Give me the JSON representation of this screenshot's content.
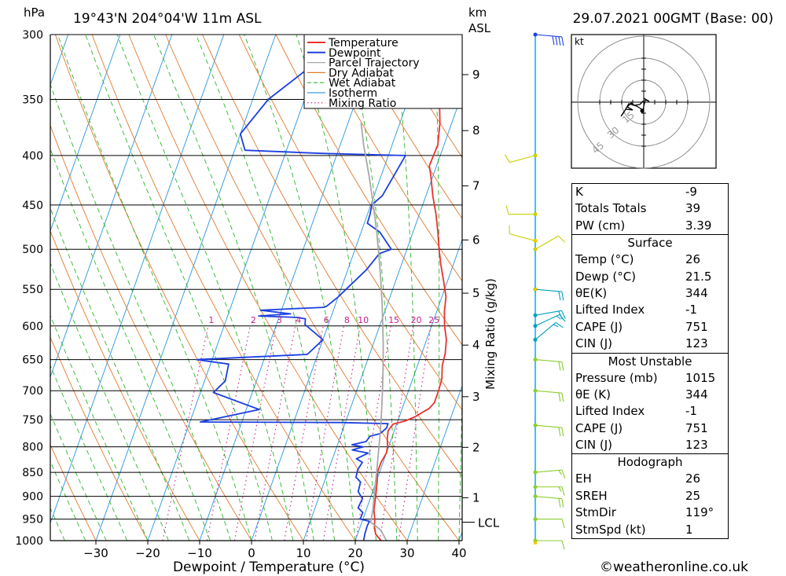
{
  "header": {
    "pressure_unit": "hPa",
    "location": "19°43'N  204°04'W  11m  ASL",
    "km_unit": "km",
    "asl_unit": "ASL",
    "datetime": "29.07.2021  00GMT  (Base: 00)"
  },
  "credit": "©weatheronline.co.uk",
  "hodograph": {
    "unit": "kt",
    "ring_labels": [
      "15",
      "30",
      "45"
    ]
  },
  "stats": {
    "indices": [
      {
        "label": "K",
        "value": "-9"
      },
      {
        "label": "Totals Totals",
        "value": "39"
      },
      {
        "label": "PW (cm)",
        "value": "3.39"
      }
    ],
    "surface": {
      "title": "Surface",
      "rows": [
        {
          "label": "Temp (°C)",
          "value": "26"
        },
        {
          "label": "Dewp (°C)",
          "value": "21.5"
        },
        {
          "label": "θE(K)",
          "value": "344"
        },
        {
          "label": "Lifted Index",
          "value": "-1"
        },
        {
          "label": "CAPE (J)",
          "value": "751"
        },
        {
          "label": "CIN (J)",
          "value": "123"
        }
      ]
    },
    "most_unstable": {
      "title": "Most Unstable",
      "rows": [
        {
          "label": "Pressure (mb)",
          "value": "1015"
        },
        {
          "label": "θE (K)",
          "value": "344"
        },
        {
          "label": "Lifted Index",
          "value": "-1"
        },
        {
          "label": "CAPE (J)",
          "value": "751"
        },
        {
          "label": "CIN (J)",
          "value": "123"
        }
      ]
    },
    "hodograph": {
      "title": "Hodograph",
      "rows": [
        {
          "label": "EH",
          "value": "26"
        },
        {
          "label": "SREH",
          "value": "25"
        },
        {
          "label": "StmDir",
          "value": "119°"
        },
        {
          "label": "StmSpd (kt)",
          "value": "1"
        }
      ]
    }
  },
  "chart_data": {
    "type": "line",
    "title": "",
    "xlabel": "Dewpoint / Temperature (°C)",
    "ylabel": "hPa",
    "right_label": "Mixing Ratio (g/kg)",
    "xlim": [
      -40,
      40
    ],
    "ylim": [
      1000,
      300
    ],
    "x_ticks": [
      -30,
      -20,
      -10,
      0,
      10,
      20,
      30,
      40
    ],
    "pressure_levels": [
      300,
      350,
      400,
      450,
      500,
      550,
      600,
      650,
      700,
      750,
      800,
      850,
      900,
      950,
      1000
    ],
    "km_ticks": [
      {
        "km": 1,
        "p": 903
      },
      {
        "km": 2,
        "p": 801
      },
      {
        "km": 3,
        "p": 710
      },
      {
        "km": 4,
        "p": 628
      },
      {
        "km": 5,
        "p": 555
      },
      {
        "km": 6,
        "p": 489
      },
      {
        "km": 7,
        "p": 430
      },
      {
        "km": 8,
        "p": 377
      },
      {
        "km": 9,
        "p": 330
      }
    ],
    "lcl": {
      "label": "LCL",
      "p": 957
    },
    "mixing_ratio_labels": [
      "1",
      "2",
      "3",
      "4",
      "6",
      "8",
      "10",
      "15",
      "20",
      "25"
    ],
    "legend": {
      "position": "top",
      "entries": [
        {
          "name": "Temperature",
          "color": "#e8322f",
          "style": "solid"
        },
        {
          "name": "Dewpoint",
          "color": "#1c3fe0",
          "style": "solid"
        },
        {
          "name": "Parcel Trajectory",
          "color": "#a8a8a8",
          "style": "solid"
        },
        {
          "name": "Dry Adiabat",
          "color": "#e07a2c",
          "style": "solid"
        },
        {
          "name": "Wet Adiabat",
          "color": "#2db52d",
          "style": "dashed"
        },
        {
          "name": "Isotherm",
          "color": "#3aa0e0",
          "style": "solid"
        },
        {
          "name": "Mixing Ratio",
          "color": "#c8208a",
          "style": "dotted"
        }
      ]
    },
    "series": [
      {
        "name": "Temperature",
        "color": "#e8322f",
        "points": [
          [
            25,
            1000
          ],
          [
            23.5,
            985
          ],
          [
            22.8,
            970
          ],
          [
            22.3,
            950
          ],
          [
            21.5,
            930
          ],
          [
            20.9,
            900
          ],
          [
            20.2,
            870
          ],
          [
            19.6,
            850
          ],
          [
            19.6,
            830
          ],
          [
            20,
            812
          ],
          [
            19.8,
            800
          ],
          [
            19.2,
            785
          ],
          [
            18.8,
            770
          ],
          [
            19.3,
            758
          ],
          [
            21.5,
            752
          ],
          [
            23,
            745
          ],
          [
            25.2,
            730
          ],
          [
            25.8,
            720
          ],
          [
            25.8,
            700
          ],
          [
            25.6,
            680
          ],
          [
            24.8,
            660
          ],
          [
            24.5,
            640
          ],
          [
            23.8,
            620
          ],
          [
            22.5,
            600
          ],
          [
            21.5,
            580
          ],
          [
            20.8,
            560
          ],
          [
            19.3,
            540
          ],
          [
            17.7,
            520
          ],
          [
            16.2,
            500
          ],
          [
            14.8,
            480
          ],
          [
            13.2,
            460
          ],
          [
            11.3,
            440
          ],
          [
            9.6,
            420
          ],
          [
            8.6,
            410
          ],
          [
            8.8,
            390
          ],
          [
            7.7,
            370
          ],
          [
            6,
            350
          ],
          [
            4.3,
            330
          ],
          [
            2.8,
            310
          ],
          [
            2,
            300
          ]
        ]
      },
      {
        "name": "Dewpoint",
        "color": "#1c3fe0",
        "points": [
          [
            21.6,
            1000
          ],
          [
            21.4,
            985
          ],
          [
            21.3,
            965
          ],
          [
            21.4,
            955
          ],
          [
            19.5,
            950
          ],
          [
            19.5,
            935
          ],
          [
            18.3,
            925
          ],
          [
            18.5,
            905
          ],
          [
            17.2,
            890
          ],
          [
            17,
            870
          ],
          [
            15.8,
            860
          ],
          [
            15.6,
            845
          ],
          [
            16,
            830
          ],
          [
            14.6,
            823
          ],
          [
            16.5,
            812
          ],
          [
            13.2,
            806
          ],
          [
            15.1,
            800
          ],
          [
            12.8,
            796
          ],
          [
            15.3,
            790
          ],
          [
            15.7,
            780
          ],
          [
            17.5,
            775
          ],
          [
            18.3,
            765
          ],
          [
            18.3,
            757
          ],
          [
            9,
            755
          ],
          [
            -18,
            754
          ],
          [
            -7.5,
            732
          ],
          [
            -17.5,
            703
          ],
          [
            -16,
            684
          ],
          [
            -16.5,
            657
          ],
          [
            -23,
            650
          ],
          [
            -2,
            642
          ],
          [
            0,
            620
          ],
          [
            -4.5,
            598
          ],
          [
            -4.8,
            590
          ],
          [
            -6.4,
            588
          ],
          [
            -14,
            586
          ],
          [
            -8,
            583
          ],
          [
            -14,
            578
          ],
          [
            -8,
            576
          ],
          [
            -2,
            574
          ],
          [
            -1.5,
            572
          ],
          [
            0,
            560
          ],
          [
            1,
            550
          ],
          [
            3.6,
            525
          ],
          [
            5,
            505
          ],
          [
            7,
            500
          ],
          [
            3.6,
            480
          ],
          [
            0.6,
            470
          ],
          [
            0.5,
            460
          ],
          [
            0.2,
            450
          ],
          [
            1.6,
            440
          ],
          [
            3.3,
            400
          ],
          [
            -13,
            398
          ],
          [
            -28,
            395
          ],
          [
            -30,
            380
          ],
          [
            -27,
            350
          ],
          [
            -19,
            315
          ],
          [
            -10,
            300
          ]
        ]
      },
      {
        "name": "Parcel Trajectory",
        "color": "#a8a8a8",
        "points": [
          [
            26,
            1000
          ],
          [
            24.2,
            975
          ],
          [
            21.7,
            957
          ],
          [
            21.3,
            930
          ],
          [
            20.6,
            900
          ],
          [
            19.9,
            870
          ],
          [
            19.2,
            840
          ],
          [
            18.4,
            810
          ],
          [
            17.6,
            780
          ],
          [
            16.7,
            750
          ],
          [
            15.7,
            720
          ],
          [
            14.6,
            690
          ],
          [
            13.4,
            660
          ],
          [
            12.1,
            630
          ],
          [
            10.6,
            600
          ],
          [
            9,
            570
          ],
          [
            7.2,
            540
          ],
          [
            5.2,
            510
          ],
          [
            3,
            480
          ],
          [
            0.5,
            450
          ],
          [
            -2.3,
            420
          ],
          [
            -5.5,
            390
          ],
          [
            -7.5,
            370
          ]
        ]
      }
    ],
    "wind_profile": {
      "unit": "kt",
      "levels": [
        {
          "p": 300,
          "dir": 95,
          "spd": 40
        },
        {
          "p": 400,
          "dir": 255,
          "spd": 12
        },
        {
          "p": 460,
          "dir": 270,
          "spd": 10
        },
        {
          "p": 490,
          "dir": 285,
          "spd": 12
        },
        {
          "p": 500,
          "dir": 60,
          "spd": 10
        },
        {
          "p": 550,
          "dir": 95,
          "spd": 20
        },
        {
          "p": 585,
          "dir": 80,
          "spd": 20
        },
        {
          "p": 600,
          "dir": 65,
          "spd": 15
        },
        {
          "p": 620,
          "dir": 50,
          "spd": 15
        },
        {
          "p": 650,
          "dir": 95,
          "spd": 20
        },
        {
          "p": 700,
          "dir": 95,
          "spd": 20
        },
        {
          "p": 760,
          "dir": 95,
          "spd": 20
        },
        {
          "p": 850,
          "dir": 85,
          "spd": 15
        },
        {
          "p": 880,
          "dir": 90,
          "spd": 15
        },
        {
          "p": 900,
          "dir": 95,
          "spd": 20
        },
        {
          "p": 950,
          "dir": 90,
          "spd": 10
        },
        {
          "p": 1000,
          "dir": 90,
          "spd": 10
        }
      ]
    }
  }
}
